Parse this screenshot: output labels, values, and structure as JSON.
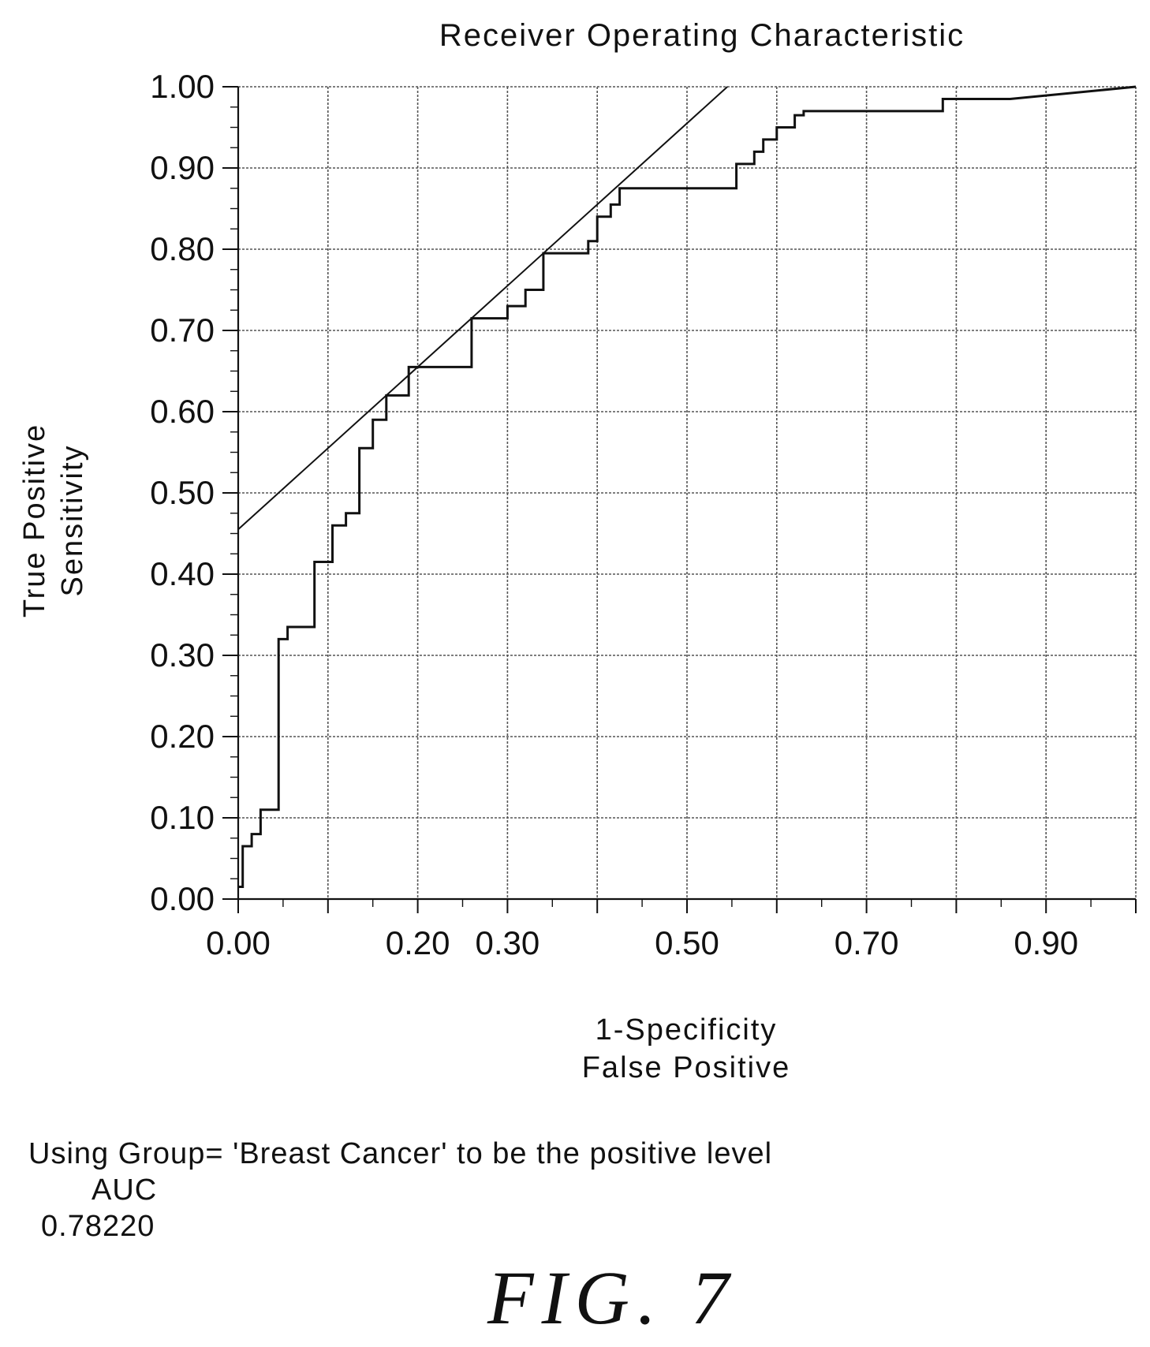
{
  "chart_data": {
    "type": "line",
    "title": "Receiver Operating Characteristic",
    "ylabel_lines": [
      "True Positive",
      "Sensitivity"
    ],
    "xlabel_lines": [
      "1-Specificity",
      "False Positive"
    ],
    "xlim": [
      0,
      1
    ],
    "ylim": [
      0,
      1
    ],
    "grid": true,
    "x_tick_values": [
      0.0,
      0.2,
      0.3,
      0.5,
      0.7,
      0.9
    ],
    "x_tick_labels": [
      "0.00",
      "0.20",
      "0.30",
      "0.50",
      "0.70",
      "0.90"
    ],
    "x_grid_values": [
      0.0,
      0.1,
      0.2,
      0.3,
      0.4,
      0.5,
      0.6,
      0.7,
      0.8,
      0.9,
      1.0
    ],
    "y_tick_values": [
      0.0,
      0.1,
      0.2,
      0.3,
      0.4,
      0.5,
      0.6,
      0.7,
      0.8,
      0.9,
      1.0
    ],
    "y_tick_labels": [
      "0.00",
      "0.10",
      "0.20",
      "0.30",
      "0.40",
      "0.50",
      "0.60",
      "0.70",
      "0.80",
      "0.90",
      "1.00"
    ],
    "series": [
      {
        "kind": "step",
        "x": [
          0.0,
          0.005,
          0.005,
          0.015,
          0.015,
          0.025,
          0.025,
          0.035,
          0.035,
          0.045,
          0.045,
          0.055,
          0.055,
          0.065,
          0.065,
          0.085,
          0.085,
          0.105,
          0.105,
          0.12,
          0.12,
          0.135,
          0.135,
          0.15,
          0.15,
          0.165,
          0.165,
          0.19,
          0.19,
          0.2,
          0.2,
          0.26,
          0.26,
          0.3,
          0.3,
          0.32,
          0.32,
          0.34,
          0.34,
          0.39,
          0.39,
          0.4,
          0.4,
          0.415,
          0.415,
          0.425,
          0.425,
          0.44,
          0.44,
          0.555,
          0.555,
          0.575,
          0.575,
          0.585,
          0.585,
          0.6,
          0.6,
          0.62,
          0.62,
          0.63,
          0.63,
          0.785,
          0.785,
          0.86,
          1.0
        ],
        "y": [
          0.015,
          0.015,
          0.065,
          0.065,
          0.08,
          0.08,
          0.11,
          0.11,
          0.11,
          0.11,
          0.32,
          0.32,
          0.335,
          0.335,
          0.335,
          0.335,
          0.415,
          0.415,
          0.46,
          0.46,
          0.475,
          0.475,
          0.555,
          0.555,
          0.59,
          0.59,
          0.62,
          0.62,
          0.655,
          0.655,
          0.655,
          0.655,
          0.715,
          0.715,
          0.73,
          0.73,
          0.75,
          0.75,
          0.795,
          0.795,
          0.81,
          0.81,
          0.84,
          0.84,
          0.855,
          0.855,
          0.875,
          0.875,
          0.875,
          0.875,
          0.905,
          0.905,
          0.92,
          0.92,
          0.935,
          0.935,
          0.95,
          0.95,
          0.965,
          0.965,
          0.97,
          0.97,
          0.985,
          0.985,
          1.0
        ]
      },
      {
        "kind": "line",
        "x": [
          0.0,
          0.545
        ],
        "y": [
          0.455,
          1.0
        ]
      }
    ]
  },
  "notes": {
    "line": "Using Group= 'Breast Cancer' to be the positive level",
    "auc_label": "AUC",
    "auc_value": "0.78220"
  },
  "caption": "FIG. 7"
}
